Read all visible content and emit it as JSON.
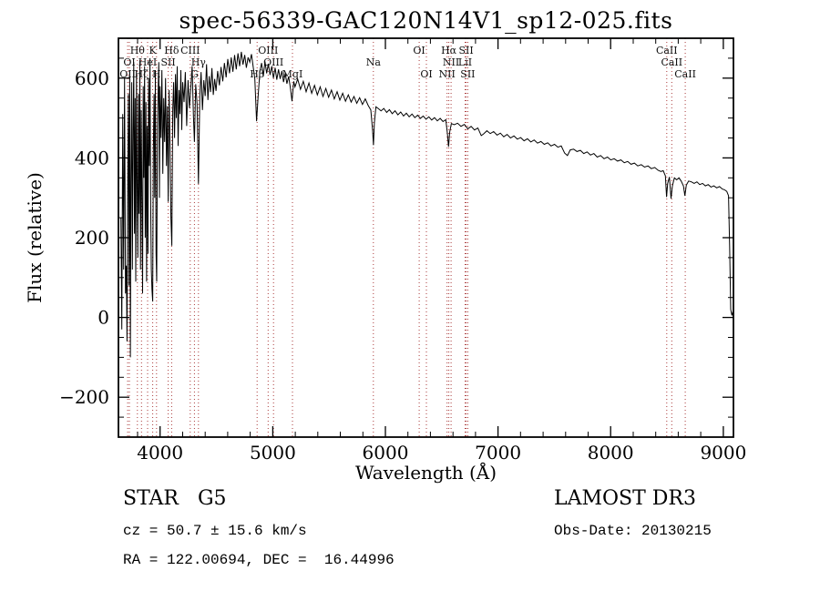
{
  "title": "spec-56339-GAC120N14V1_sp12-025.fits",
  "chart_data": {
    "type": "line",
    "title": "spec-56339-GAC120N14V1_sp12-025.fits",
    "xlabel": "Wavelength (Å)",
    "ylabel": "Flux (relative)",
    "xlim": [
      3630,
      9090
    ],
    "ylim": [
      -300,
      700
    ],
    "x_ticks": [
      4000,
      5000,
      6000,
      7000,
      8000,
      9000
    ],
    "y_ticks": [
      -200,
      0,
      200,
      400,
      600
    ],
    "x_minor_step": 200,
    "y_minor_step": 50,
    "grid": false,
    "axis_box": true,
    "trace_color": "#000000",
    "marker_color": "#aa3939",
    "spectral_lines": [
      {
        "wavelength": 3712,
        "label": "OII",
        "row": 3
      },
      {
        "wavelength": 3727,
        "label": "OI",
        "row": 2
      },
      {
        "wavelength": 3798,
        "label": "Hθ",
        "row": 1
      },
      {
        "wavelength": 3835,
        "label": "Hζ",
        "row": 3
      },
      {
        "wavelength": 3889,
        "label": "HeI",
        "row": 2
      },
      {
        "wavelength": 3934,
        "label": "K",
        "row": 1
      },
      {
        "wavelength": 3968,
        "label": "H",
        "row": 3
      },
      {
        "wavelength": 4072,
        "label": "SII",
        "row": 2
      },
      {
        "wavelength": 4102,
        "label": "Hδ",
        "row": 1
      },
      {
        "wavelength": 4267,
        "label": "CIII",
        "row": 1
      },
      {
        "wavelength": 4305,
        "label": "G",
        "row": 3
      },
      {
        "wavelength": 4340,
        "label": "Hγ",
        "row": 2
      },
      {
        "wavelength": 4861,
        "label": "Hβ",
        "row": 3
      },
      {
        "wavelength": 4959,
        "label": "OIII",
        "row": 1
      },
      {
        "wavelength": 5007,
        "label": "OIII",
        "row": 2
      },
      {
        "wavelength": 5175,
        "label": "MgI",
        "row": 3
      },
      {
        "wavelength": 5893,
        "label": "Na",
        "row": 2
      },
      {
        "wavelength": 6300,
        "label": "OI",
        "row": 1
      },
      {
        "wavelength": 6364,
        "label": "OI",
        "row": 3
      },
      {
        "wavelength": 6548,
        "label": "NII",
        "row": 3
      },
      {
        "wavelength": 6563,
        "label": "Hα",
        "row": 1
      },
      {
        "wavelength": 6583,
        "label": "NII",
        "row": 2
      },
      {
        "wavelength": 6708,
        "label": "LiI",
        "row": 2
      },
      {
        "wavelength": 6717,
        "label": "SII",
        "row": 1
      },
      {
        "wavelength": 6731,
        "label": "SII",
        "row": 3
      },
      {
        "wavelength": 8498,
        "label": "CaII",
        "row": 1
      },
      {
        "wavelength": 8542,
        "label": "CaII",
        "row": 2
      },
      {
        "wavelength": 8662,
        "label": "CaII",
        "row": 3
      }
    ],
    "flux_points": [
      [
        3652,
        250
      ],
      [
        3660,
        -30
      ],
      [
        3668,
        510
      ],
      [
        3676,
        120
      ],
      [
        3684,
        600
      ],
      [
        3692,
        60
      ],
      [
        3700,
        130
      ],
      [
        3706,
        -60
      ],
      [
        3712,
        300
      ],
      [
        3718,
        560
      ],
      [
        3724,
        80
      ],
      [
        3730,
        620
      ],
      [
        3736,
        -100
      ],
      [
        3742,
        340
      ],
      [
        3748,
        590
      ],
      [
        3754,
        120
      ],
      [
        3760,
        470
      ],
      [
        3766,
        640
      ],
      [
        3772,
        210
      ],
      [
        3778,
        550
      ],
      [
        3784,
        90
      ],
      [
        3790,
        610
      ],
      [
        3796,
        330
      ],
      [
        3802,
        150
      ],
      [
        3808,
        560
      ],
      [
        3814,
        260
      ],
      [
        3820,
        645
      ],
      [
        3826,
        120
      ],
      [
        3832,
        520
      ],
      [
        3838,
        300
      ],
      [
        3844,
        60
      ],
      [
        3850,
        580
      ],
      [
        3856,
        350
      ],
      [
        3862,
        630
      ],
      [
        3868,
        200
      ],
      [
        3874,
        540
      ],
      [
        3880,
        90
      ],
      [
        3886,
        480
      ],
      [
        3892,
        160
      ],
      [
        3898,
        600
      ],
      [
        3904,
        380
      ],
      [
        3910,
        650
      ],
      [
        3916,
        280
      ],
      [
        3922,
        120
      ],
      [
        3928,
        70
      ],
      [
        3934,
        40
      ],
      [
        3940,
        420
      ],
      [
        3946,
        560
      ],
      [
        3952,
        300
      ],
      [
        3958,
        620
      ],
      [
        3964,
        160
      ],
      [
        3970,
        90
      ],
      [
        3976,
        480
      ],
      [
        3982,
        560
      ],
      [
        3988,
        640
      ],
      [
        3994,
        300
      ],
      [
        4000,
        580
      ],
      [
        4008,
        450
      ],
      [
        4016,
        620
      ],
      [
        4024,
        360
      ],
      [
        4032,
        550
      ],
      [
        4040,
        440
      ],
      [
        4048,
        600
      ],
      [
        4056,
        380
      ],
      [
        4064,
        530
      ],
      [
        4072,
        290
      ],
      [
        4080,
        570
      ],
      [
        4088,
        430
      ],
      [
        4096,
        250
      ],
      [
        4104,
        180
      ],
      [
        4112,
        520
      ],
      [
        4120,
        590
      ],
      [
        4128,
        450
      ],
      [
        4136,
        610
      ],
      [
        4144,
        500
      ],
      [
        4152,
        630
      ],
      [
        4160,
        430
      ],
      [
        4168,
        570
      ],
      [
        4176,
        510
      ],
      [
        4184,
        620
      ],
      [
        4192,
        470
      ],
      [
        4200,
        590
      ],
      [
        4212,
        540
      ],
      [
        4224,
        615
      ],
      [
        4236,
        480
      ],
      [
        4248,
        595
      ],
      [
        4260,
        525
      ],
      [
        4272,
        575
      ],
      [
        4284,
        630
      ],
      [
        4296,
        505
      ],
      [
        4305,
        440
      ],
      [
        4316,
        585
      ],
      [
        4328,
        535
      ],
      [
        4340,
        335
      ],
      [
        4352,
        555
      ],
      [
        4364,
        615
      ],
      [
        4376,
        520
      ],
      [
        4388,
        595
      ],
      [
        4400,
        555
      ],
      [
        4412,
        635
      ],
      [
        4424,
        545
      ],
      [
        4436,
        605
      ],
      [
        4448,
        565
      ],
      [
        4460,
        625
      ],
      [
        4472,
        558
      ],
      [
        4484,
        598
      ],
      [
        4496,
        568
      ],
      [
        4511,
        618
      ],
      [
        4526,
        582
      ],
      [
        4541,
        628
      ],
      [
        4556,
        592
      ],
      [
        4571,
        638
      ],
      [
        4586,
        602
      ],
      [
        4601,
        648
      ],
      [
        4616,
        612
      ],
      [
        4631,
        652
      ],
      [
        4646,
        616
      ],
      [
        4661,
        658
      ],
      [
        4676,
        622
      ],
      [
        4691,
        662
      ],
      [
        4706,
        630
      ],
      [
        4721,
        666
      ],
      [
        4736,
        634
      ],
      [
        4751,
        658
      ],
      [
        4766,
        626
      ],
      [
        4781,
        652
      ],
      [
        4796,
        640
      ],
      [
        4811,
        660
      ],
      [
        4826,
        628
      ],
      [
        4841,
        598
      ],
      [
        4856,
        492
      ],
      [
        4871,
        558
      ],
      [
        4886,
        618
      ],
      [
        4901,
        638
      ],
      [
        4916,
        604
      ],
      [
        4931,
        642
      ],
      [
        4946,
        612
      ],
      [
        4961,
        636
      ],
      [
        4976,
        608
      ],
      [
        4991,
        630
      ],
      [
        5006,
        600
      ],
      [
        5021,
        626
      ],
      [
        5036,
        596
      ],
      [
        5051,
        622
      ],
      [
        5066,
        598
      ],
      [
        5081,
        618
      ],
      [
        5096,
        590
      ],
      [
        5111,
        612
      ],
      [
        5126,
        586
      ],
      [
        5141,
        604
      ],
      [
        5156,
        576
      ],
      [
        5171,
        542
      ],
      [
        5186,
        592
      ],
      [
        5198,
        578
      ],
      [
        5221,
        598
      ],
      [
        5246,
        572
      ],
      [
        5271,
        592
      ],
      [
        5296,
        566
      ],
      [
        5321,
        588
      ],
      [
        5346,
        562
      ],
      [
        5371,
        582
      ],
      [
        5396,
        558
      ],
      [
        5421,
        578
      ],
      [
        5446,
        554
      ],
      [
        5471,
        574
      ],
      [
        5496,
        552
      ],
      [
        5521,
        570
      ],
      [
        5546,
        548
      ],
      [
        5571,
        566
      ],
      [
        5596,
        545
      ],
      [
        5621,
        562
      ],
      [
        5646,
        542
      ],
      [
        5671,
        558
      ],
      [
        5696,
        540
      ],
      [
        5721,
        554
      ],
      [
        5746,
        537
      ],
      [
        5771,
        551
      ],
      [
        5796,
        534
      ],
      [
        5821,
        548
      ],
      [
        5846,
        532
      ],
      [
        5871,
        520
      ],
      [
        5886,
        470
      ],
      [
        5894,
        432
      ],
      [
        5902,
        488
      ],
      [
        5916,
        528
      ],
      [
        5936,
        524
      ],
      [
        5961,
        518
      ],
      [
        5986,
        524
      ],
      [
        6011,
        514
      ],
      [
        6036,
        521
      ],
      [
        6061,
        511
      ],
      [
        6086,
        518
      ],
      [
        6111,
        508
      ],
      [
        6136,
        515
      ],
      [
        6161,
        505
      ],
      [
        6186,
        512
      ],
      [
        6211,
        503
      ],
      [
        6236,
        510
      ],
      [
        6261,
        501
      ],
      [
        6286,
        507
      ],
      [
        6311,
        499
      ],
      [
        6336,
        505
      ],
      [
        6361,
        497
      ],
      [
        6386,
        503
      ],
      [
        6411,
        495
      ],
      [
        6436,
        501
      ],
      [
        6461,
        493
      ],
      [
        6486,
        499
      ],
      [
        6511,
        491
      ],
      [
        6536,
        496
      ],
      [
        6551,
        460
      ],
      [
        6561,
        428
      ],
      [
        6571,
        465
      ],
      [
        6586,
        486
      ],
      [
        6611,
        483
      ],
      [
        6641,
        487
      ],
      [
        6671,
        479
      ],
      [
        6701,
        484
      ],
      [
        6731,
        473
      ],
      [
        6761,
        479
      ],
      [
        6791,
        470
      ],
      [
        6821,
        475
      ],
      [
        6851,
        456
      ],
      [
        6871,
        460
      ],
      [
        6901,
        468
      ],
      [
        6931,
        461
      ],
      [
        6961,
        466
      ],
      [
        6991,
        457
      ],
      [
        7021,
        462
      ],
      [
        7051,
        453
      ],
      [
        7081,
        459
      ],
      [
        7111,
        450
      ],
      [
        7141,
        455
      ],
      [
        7171,
        447
      ],
      [
        7201,
        451
      ],
      [
        7231,
        443
      ],
      [
        7261,
        448
      ],
      [
        7291,
        440
      ],
      [
        7321,
        445
      ],
      [
        7351,
        437
      ],
      [
        7381,
        441
      ],
      [
        7411,
        434
      ],
      [
        7441,
        438
      ],
      [
        7471,
        430
      ],
      [
        7501,
        434
      ],
      [
        7531,
        427
      ],
      [
        7561,
        430
      ],
      [
        7591,
        412
      ],
      [
        7616,
        406
      ],
      [
        7641,
        420
      ],
      [
        7671,
        422
      ],
      [
        7701,
        416
      ],
      [
        7731,
        419
      ],
      [
        7761,
        411
      ],
      [
        7791,
        415
      ],
      [
        7821,
        407
      ],
      [
        7851,
        411
      ],
      [
        7881,
        402
      ],
      [
        7911,
        406
      ],
      [
        7941,
        398
      ],
      [
        7971,
        402
      ],
      [
        8001,
        395
      ],
      [
        8031,
        398
      ],
      [
        8061,
        392
      ],
      [
        8091,
        395
      ],
      [
        8121,
        388
      ],
      [
        8151,
        391
      ],
      [
        8181,
        384
      ],
      [
        8211,
        387
      ],
      [
        8241,
        380
      ],
      [
        8271,
        383
      ],
      [
        8301,
        377
      ],
      [
        8331,
        380
      ],
      [
        8361,
        373
      ],
      [
        8391,
        376
      ],
      [
        8421,
        369
      ],
      [
        8446,
        366
      ],
      [
        8466,
        368
      ],
      [
        8486,
        355
      ],
      [
        8496,
        302
      ],
      [
        8506,
        336
      ],
      [
        8521,
        352
      ],
      [
        8536,
        298
      ],
      [
        8548,
        330
      ],
      [
        8566,
        350
      ],
      [
        8586,
        345
      ],
      [
        8606,
        350
      ],
      [
        8626,
        342
      ],
      [
        8646,
        330
      ],
      [
        8659,
        305
      ],
      [
        8672,
        332
      ],
      [
        8692,
        342
      ],
      [
        8716,
        340
      ],
      [
        8741,
        336
      ],
      [
        8766,
        340
      ],
      [
        8791,
        333
      ],
      [
        8816,
        336
      ],
      [
        8841,
        330
      ],
      [
        8866,
        333
      ],
      [
        8891,
        327
      ],
      [
        8916,
        330
      ],
      [
        8941,
        325
      ],
      [
        8966,
        328
      ],
      [
        8991,
        322
      ],
      [
        9011,
        320
      ],
      [
        9031,
        316
      ],
      [
        9046,
        305
      ],
      [
        9056,
        180
      ],
      [
        9066,
        20
      ],
      [
        9076,
        5
      ],
      [
        9086,
        15
      ]
    ]
  },
  "footer": {
    "star_class": "STAR   G5",
    "survey": "LAMOST DR3",
    "cz_line": "cz = 50.7 ± 15.6 km/s",
    "obs_date_line": "Obs-Date: 20130215",
    "coord_line": "RA = 122.00694, DEC =  16.44996"
  }
}
